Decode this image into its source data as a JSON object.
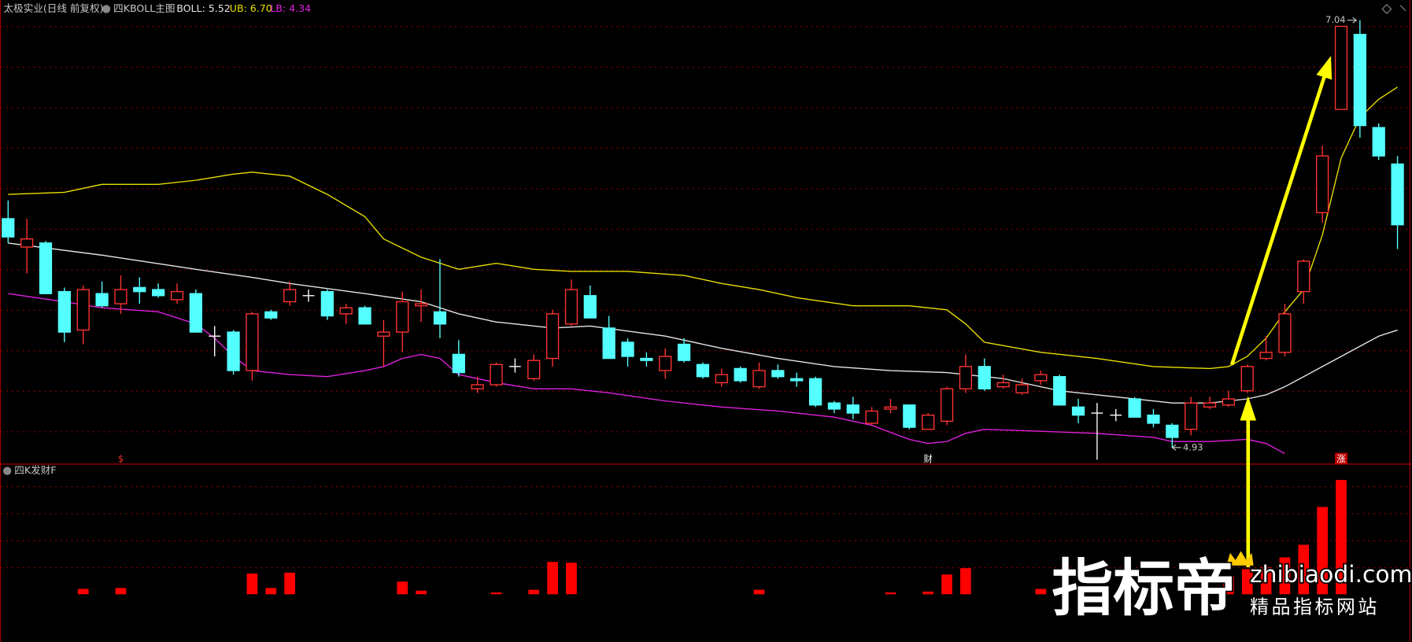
{
  "header": {
    "title": "太极实业(日线 前复权)"
  },
  "chart_data": [
    {
      "type": "candlestick",
      "title": "四KBOLL主图",
      "up_color": "#ff3232",
      "down_color": "#54ffff",
      "doji_color": "#ffffff",
      "ylim": [
        4.85,
        7.14
      ],
      "grid": true,
      "grid_values": [
        7.01,
        6.81,
        6.61,
        6.41,
        6.21,
        6.01,
        5.81,
        5.61,
        5.41,
        5.21,
        5.01
      ],
      "open": [
        6.06,
        5.92,
        5.94,
        5.7,
        5.51,
        5.69,
        5.64,
        5.72,
        5.71,
        5.66,
        5.69,
        5.48,
        5.5,
        5.31,
        5.6,
        5.65,
        5.68,
        5.7,
        5.59,
        5.62,
        5.48,
        5.5,
        5.63,
        5.6,
        5.39,
        5.22,
        5.24,
        5.33,
        5.27,
        5.37,
        5.54,
        5.68,
        5.52,
        5.45,
        5.37,
        5.31,
        5.44,
        5.34,
        5.25,
        5.32,
        5.23,
        5.31,
        5.27,
        5.27,
        5.15,
        5.14,
        5.05,
        5.12,
        5.14,
        5.02,
        5.06,
        5.22,
        5.33,
        5.23,
        5.2,
        5.26,
        5.28,
        5.13,
        5.1,
        5.09,
        5.17,
        5.09,
        5.04,
        5.02,
        5.13,
        5.14,
        5.21,
        5.37,
        5.4,
        5.7,
        6.09,
        6.6,
        6.97,
        6.51,
        6.33
      ],
      "high": [
        6.15,
        6.06,
        5.95,
        5.72,
        5.73,
        5.75,
        5.78,
        5.77,
        5.74,
        5.74,
        5.71,
        5.53,
        5.51,
        5.6,
        5.61,
        5.75,
        5.71,
        5.71,
        5.64,
        5.63,
        5.56,
        5.7,
        5.71,
        5.86,
        5.46,
        5.28,
        5.35,
        5.37,
        5.39,
        5.61,
        5.76,
        5.73,
        5.58,
        5.47,
        5.4,
        5.42,
        5.47,
        5.35,
        5.32,
        5.33,
        5.35,
        5.34,
        5.3,
        5.28,
        5.16,
        5.18,
        5.13,
        5.17,
        5.14,
        5.1,
        5.23,
        5.39,
        5.37,
        5.29,
        5.27,
        5.31,
        5.29,
        5.17,
        5.15,
        5.12,
        5.18,
        5.12,
        5.05,
        5.18,
        5.18,
        5.21,
        5.34,
        5.48,
        5.64,
        5.86,
        6.42,
        7.01,
        7.04,
        6.53,
        6.37
      ],
      "low": [
        5.94,
        5.79,
        5.69,
        5.45,
        5.44,
        5.62,
        5.59,
        5.64,
        5.67,
        5.64,
        5.5,
        5.38,
        5.29,
        5.26,
        5.56,
        5.63,
        5.65,
        5.56,
        5.54,
        5.54,
        5.33,
        5.4,
        5.55,
        5.47,
        5.28,
        5.2,
        5.23,
        5.3,
        5.26,
        5.33,
        5.53,
        5.57,
        5.37,
        5.33,
        5.33,
        5.27,
        5.35,
        5.27,
        5.23,
        5.25,
        5.22,
        5.27,
        5.23,
        5.13,
        5.1,
        5.07,
        5.04,
        5.1,
        5.02,
        5.02,
        5.04,
        5.2,
        5.21,
        5.22,
        5.19,
        5.24,
        5.14,
        5.05,
        4.87,
        5.06,
        5.08,
        5.03,
        4.93,
        4.99,
        5.12,
        5.13,
        5.2,
        5.36,
        5.38,
        5.64,
        6.04,
        6.6,
        6.46,
        6.35,
        5.91
      ],
      "close": [
        5.97,
        5.96,
        5.69,
        5.5,
        5.71,
        5.63,
        5.71,
        5.7,
        5.68,
        5.7,
        5.5,
        5.48,
        5.31,
        5.59,
        5.57,
        5.71,
        5.68,
        5.58,
        5.62,
        5.54,
        5.5,
        5.65,
        5.64,
        5.54,
        5.3,
        5.24,
        5.34,
        5.33,
        5.36,
        5.59,
        5.71,
        5.57,
        5.37,
        5.38,
        5.36,
        5.38,
        5.36,
        5.28,
        5.29,
        5.26,
        5.31,
        5.28,
        5.26,
        5.14,
        5.12,
        5.1,
        5.11,
        5.13,
        5.03,
        5.09,
        5.22,
        5.33,
        5.22,
        5.25,
        5.24,
        5.29,
        5.14,
        5.09,
        5.1,
        5.09,
        5.08,
        5.05,
        4.98,
        5.15,
        5.15,
        5.17,
        5.33,
        5.4,
        5.59,
        5.85,
        6.37,
        7.01,
        6.52,
        6.37,
        6.03
      ],
      "series": [
        {
          "name": "BOLL: 5.52",
          "color": "#e6e6e6",
          "x": [
            0,
            5,
            10,
            13,
            15,
            19,
            22,
            24,
            26,
            29,
            31,
            35,
            38,
            41,
            44,
            47,
            50,
            53,
            56,
            59,
            62,
            64,
            65,
            66,
            67,
            68,
            69,
            70,
            71,
            72,
            73,
            74
          ],
          "values": [
            5.94,
            5.88,
            5.81,
            5.77,
            5.74,
            5.69,
            5.65,
            5.59,
            5.55,
            5.52,
            5.53,
            5.48,
            5.42,
            5.37,
            5.33,
            5.31,
            5.3,
            5.27,
            5.21,
            5.18,
            5.15,
            5.15,
            5.16,
            5.17,
            5.19,
            5.23,
            5.28,
            5.33,
            5.38,
            5.43,
            5.48,
            5.51
          ]
        },
        {
          "name": "UB: 6.70",
          "color": "#e8e000",
          "x": [
            0,
            3,
            5,
            8,
            10,
            12,
            13,
            15,
            17,
            19,
            20,
            22,
            24,
            26,
            28,
            30,
            33,
            36,
            38,
            40,
            42,
            45,
            48,
            50,
            51,
            52,
            55,
            58,
            61,
            64,
            65,
            66,
            67,
            68,
            69,
            70,
            71,
            72,
            73,
            74
          ],
          "values": [
            6.18,
            6.19,
            6.23,
            6.23,
            6.25,
            6.28,
            6.29,
            6.27,
            6.18,
            6.07,
            5.96,
            5.87,
            5.81,
            5.84,
            5.81,
            5.8,
            5.8,
            5.78,
            5.74,
            5.71,
            5.67,
            5.63,
            5.63,
            5.61,
            5.54,
            5.45,
            5.4,
            5.37,
            5.33,
            5.32,
            5.33,
            5.38,
            5.47,
            5.6,
            5.71,
            5.98,
            6.36,
            6.56,
            6.65,
            6.71
          ]
        },
        {
          "name": "LB: 4.34",
          "color": "#e020e0",
          "x": [
            0,
            3,
            5,
            8,
            10,
            11,
            12,
            13,
            15,
            17,
            19,
            20,
            21,
            22,
            23,
            24,
            26,
            28,
            30,
            32,
            35,
            38,
            41,
            44,
            46,
            48,
            49,
            50,
            51,
            52,
            55,
            58,
            61,
            62,
            64,
            66,
            67,
            68
          ],
          "values": [
            5.69,
            5.65,
            5.62,
            5.6,
            5.54,
            5.47,
            5.38,
            5.31,
            5.29,
            5.28,
            5.31,
            5.33,
            5.37,
            5.39,
            5.37,
            5.29,
            5.25,
            5.22,
            5.22,
            5.2,
            5.16,
            5.13,
            5.11,
            5.08,
            5.04,
            4.97,
            4.95,
            4.96,
            5.0,
            5.02,
            5.01,
            5.0,
            4.98,
            4.96,
            4.96,
            4.97,
            4.95,
            4.9
          ]
        }
      ],
      "annotations": [
        {
          "x": 72,
          "value": 7.04,
          "label": "7.04",
          "arrow": "right"
        },
        {
          "x": 62,
          "value": 4.93,
          "label": "4.93",
          "arrow": "left"
        }
      ],
      "markers": [
        {
          "x": 6,
          "text": "$",
          "color": "#ff3232"
        },
        {
          "x": 49,
          "text": "财",
          "color": "#ffffff"
        },
        {
          "x": 71,
          "text": "涨",
          "color": "#ffffff",
          "background": "#c00000"
        }
      ]
    },
    {
      "type": "bar",
      "title": "四K发财F",
      "color": "#ff0000",
      "ylim": [
        0,
        144
      ],
      "grid": true,
      "grid_values": [
        30,
        60,
        90,
        120
      ],
      "values": [
        0,
        0,
        0,
        0,
        6,
        0,
        7,
        0,
        0,
        0,
        0,
        0,
        0,
        23,
        7,
        24,
        0,
        0,
        0,
        0,
        0,
        14,
        4,
        0,
        0,
        0,
        2,
        0,
        5,
        36,
        35,
        0,
        0,
        0,
        0,
        0,
        0,
        0,
        0,
        0,
        5,
        0,
        0,
        0,
        0,
        0,
        0,
        2,
        0,
        3,
        22,
        29,
        0,
        0,
        0,
        6,
        0,
        0,
        0,
        0,
        0,
        0,
        0,
        0,
        0,
        20,
        28,
        30,
        41,
        55,
        97,
        127,
        0,
        0,
        0
      ]
    }
  ],
  "watermark": {
    "brand": "指标帝",
    "site": "zhibiaodi.com",
    "slogan": "精品指标网站"
  }
}
